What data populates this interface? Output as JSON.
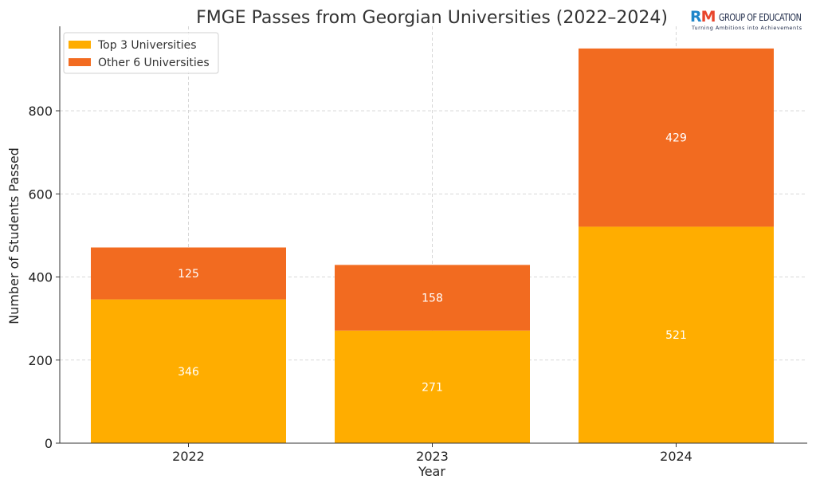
{
  "logo": {
    "r": "R",
    "m": "M",
    "name": "GROUP OF EDUCATION",
    "tagline": "Turning Ambitions into Achievements"
  },
  "chart_data": {
    "type": "bar",
    "stacked": true,
    "title": "FMGE Passes from Georgian Universities (2022–2024)",
    "xlabel": "Year",
    "ylabel": "Number of Students Passed",
    "categories": [
      "2022",
      "2023",
      "2024"
    ],
    "series": [
      {
        "name": "Top 3 Universities",
        "values": [
          346,
          271,
          521
        ],
        "color": "#ffad00"
      },
      {
        "name": "Other 6 Universities",
        "values": [
          125,
          158,
          429
        ],
        "color": "#f26b20"
      }
    ],
    "ylim": [
      0,
      1000
    ],
    "yticks": [
      0,
      200,
      400,
      600,
      800
    ],
    "grid": true,
    "legend": "top-left",
    "data_labels": true
  }
}
